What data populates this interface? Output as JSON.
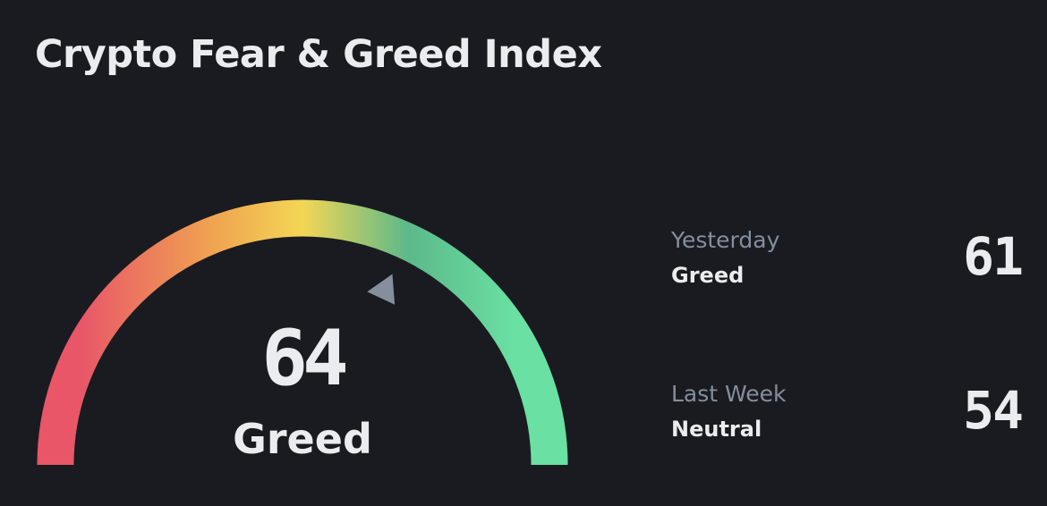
{
  "title": "Crypto Fear & Greed Index",
  "gauge": {
    "value": 64,
    "label": "Greed",
    "min": 0,
    "max": 100,
    "colors": [
      "#e85668",
      "#f0a650",
      "#f3d655",
      "#5cb98a",
      "#6ae0a2"
    ],
    "indicator_color": "#848e9c"
  },
  "stats": [
    {
      "period": "Yesterday",
      "classification": "Greed",
      "value": "61"
    },
    {
      "period": "Last Week",
      "classification": "Neutral",
      "value": "54"
    }
  ]
}
